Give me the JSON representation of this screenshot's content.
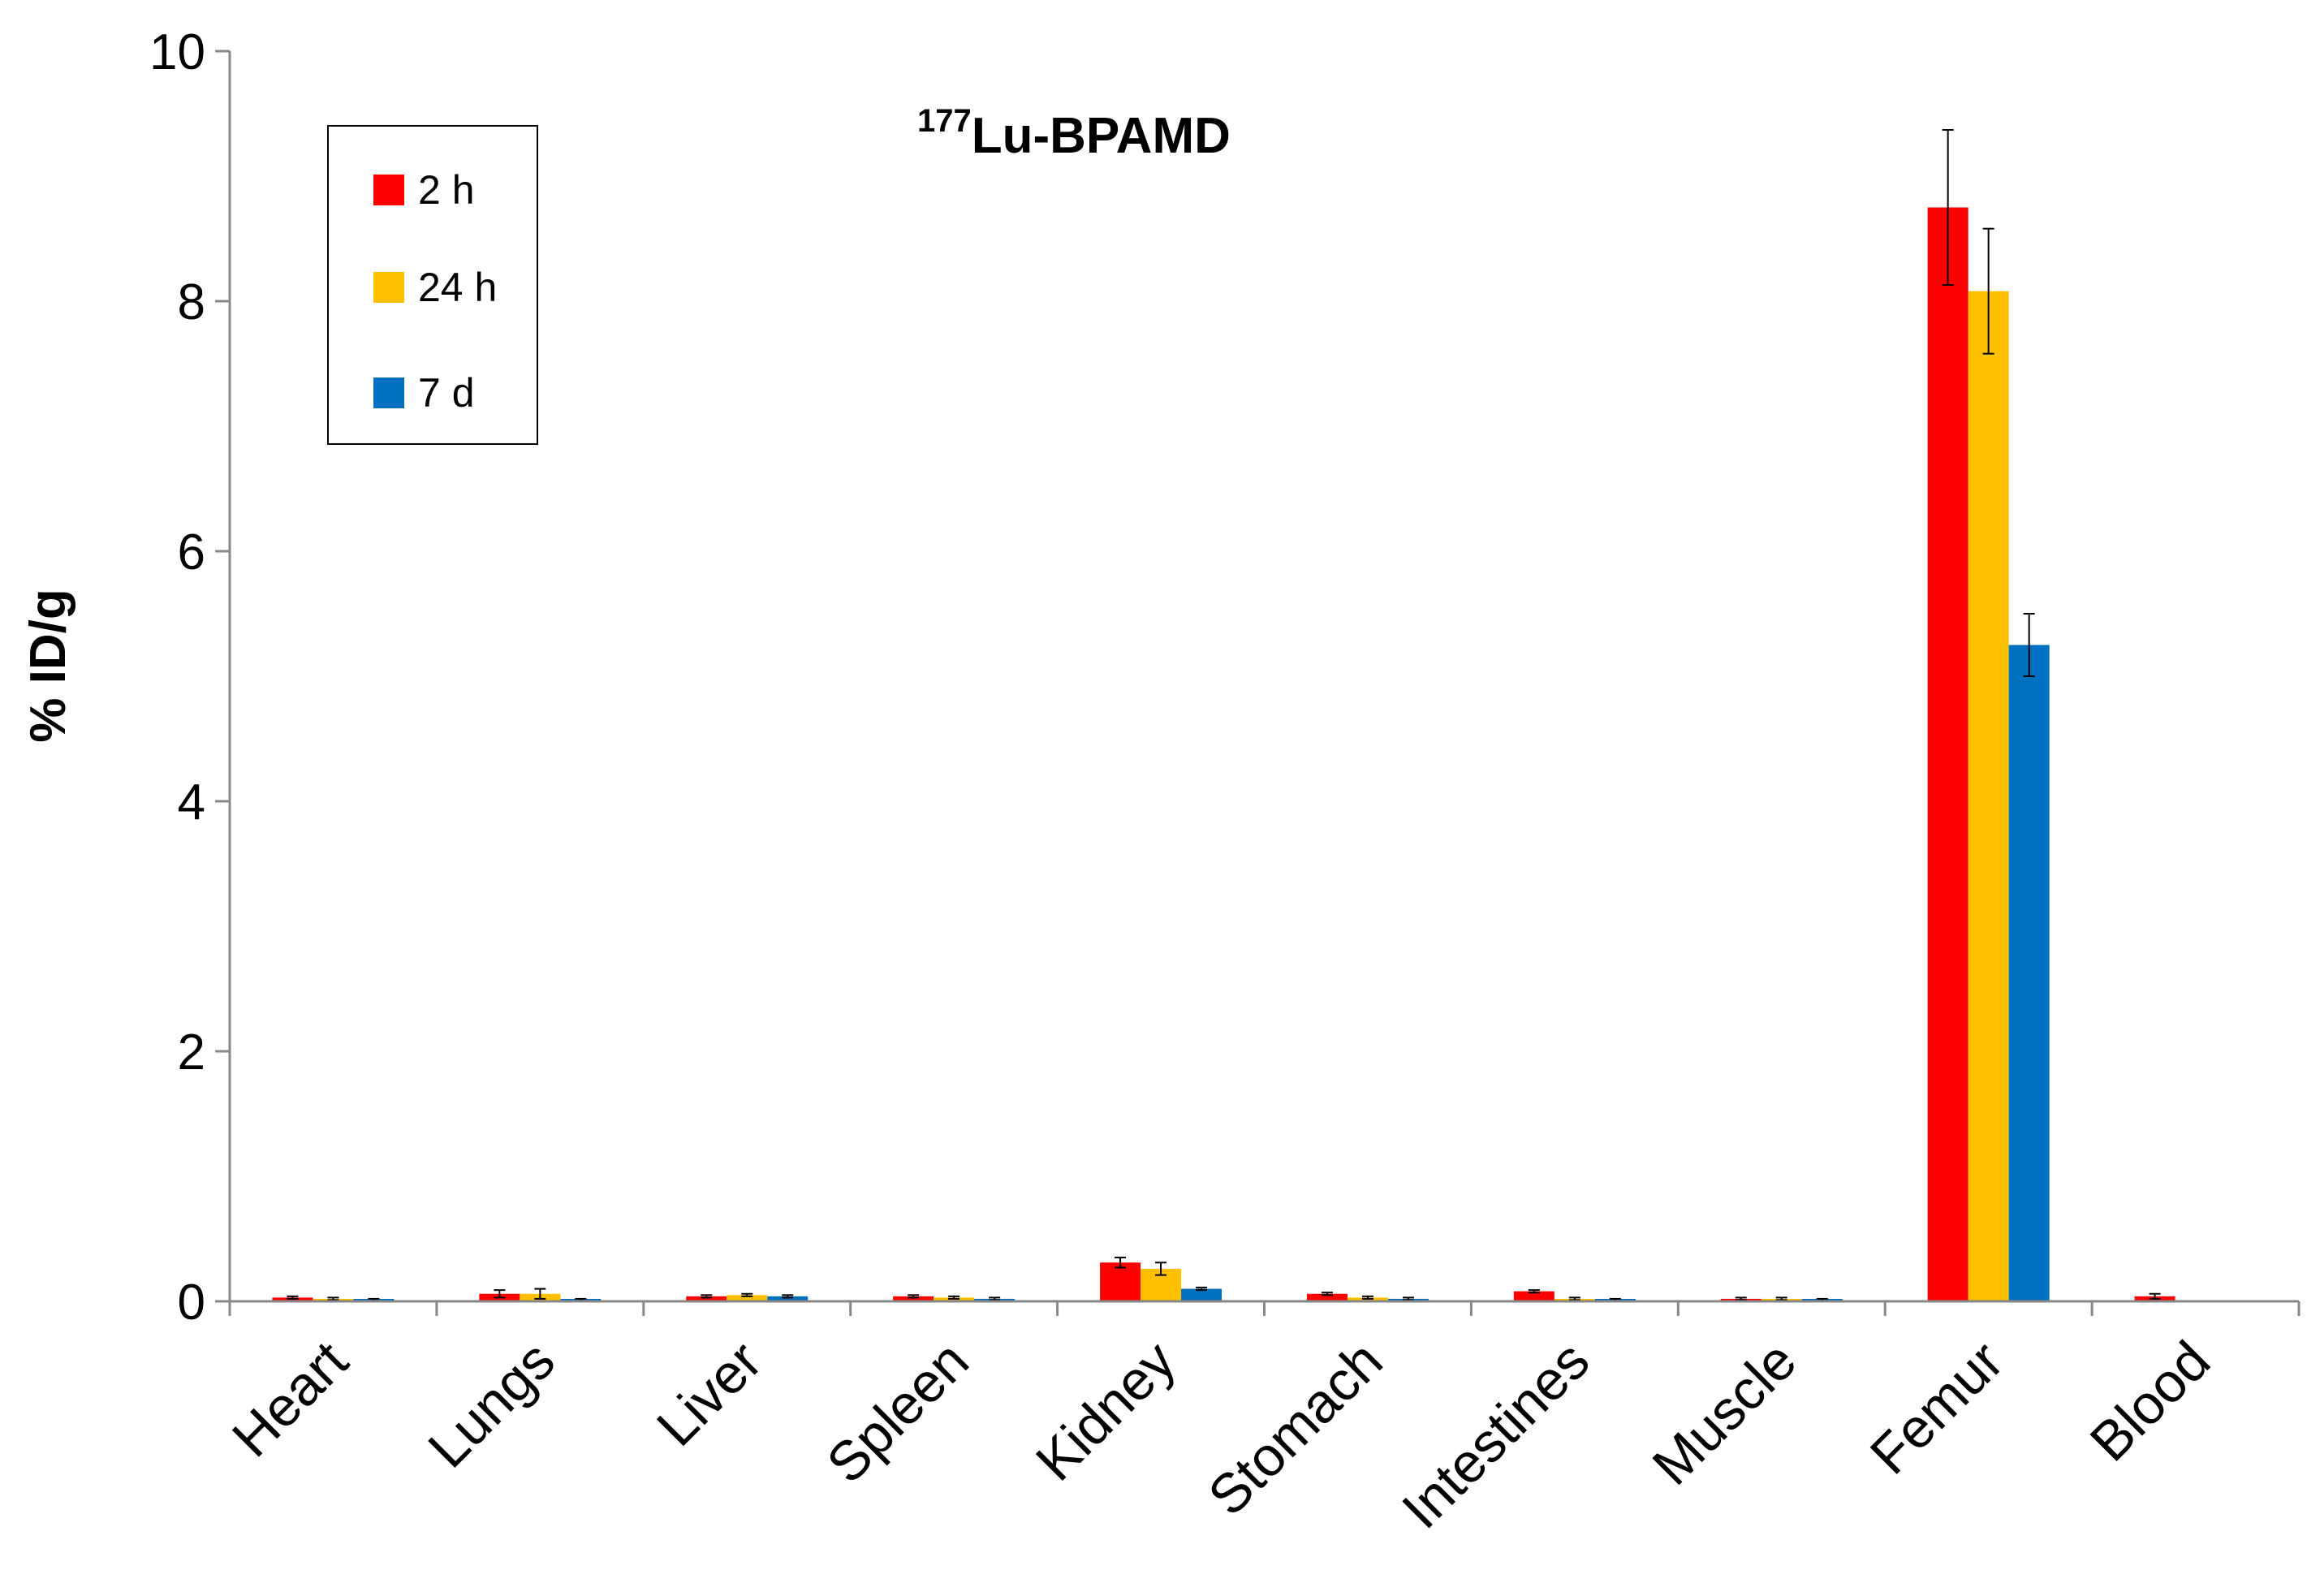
{
  "chart_data": {
    "type": "bar",
    "title_superscript": "177",
    "title_main": "Lu-BPAMD",
    "xlabel": "",
    "ylabel": "% ID/g",
    "ylim": [
      0,
      10
    ],
    "yticks": [
      "0",
      "2",
      "4",
      "6",
      "8",
      "10"
    ],
    "grid": false,
    "legend_position": "top-left",
    "categories": [
      "Heart",
      "Lungs",
      "Liver",
      "Spleen",
      "Kidney",
      "Stomach",
      "Intestines",
      "Muscle",
      "Femur",
      "Blood"
    ],
    "series": [
      {
        "name": "2 h",
        "color": "#ff0000",
        "values": [
          0.03,
          0.06,
          0.04,
          0.04,
          0.31,
          0.06,
          0.08,
          0.02,
          8.75,
          0.04
        ],
        "errors": [
          0.01,
          0.03,
          0.01,
          0.01,
          0.04,
          0.01,
          0.01,
          0.01,
          0.62,
          0.02
        ]
      },
      {
        "name": "24 h",
        "color": "#ffc000",
        "values": [
          0.02,
          0.06,
          0.05,
          0.03,
          0.26,
          0.03,
          0.02,
          0.02,
          8.08,
          0
        ],
        "errors": [
          0.01,
          0.04,
          0.01,
          0.01,
          0.05,
          0.01,
          0.01,
          0.01,
          0.5,
          0
        ]
      },
      {
        "name": "7 d",
        "color": "#0070c0",
        "values": [
          0.01,
          0.01,
          0.04,
          0.02,
          0.1,
          0.02,
          0.01,
          0.01,
          5.25,
          0
        ],
        "errors": [
          0.01,
          0.01,
          0.01,
          0.01,
          0.01,
          0.01,
          0.01,
          0.01,
          0.25,
          0
        ]
      }
    ]
  }
}
